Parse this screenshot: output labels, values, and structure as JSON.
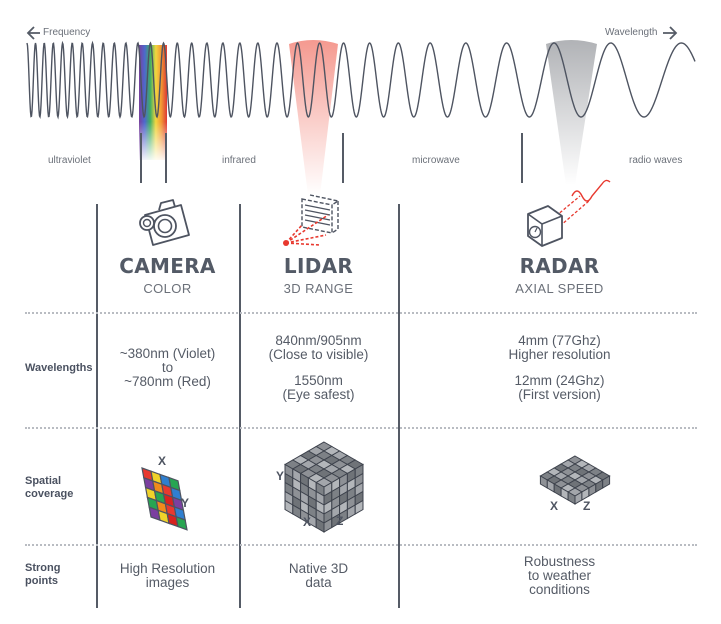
{
  "spectrum": {
    "left_arrow_label": "Frequency",
    "right_arrow_label": "Wavelength",
    "bands": [
      "ultraviolet",
      "infrared",
      "microwave",
      "radio waves"
    ]
  },
  "sensors": [
    {
      "name": "CAMERA",
      "measure": "COLOR",
      "icon": "camera-icon"
    },
    {
      "name": "LIDAR",
      "measure": "3D RANGE",
      "icon": "lidar-icon"
    },
    {
      "name": "RADAR",
      "measure": "AXIAL SPEED",
      "icon": "radar-icon"
    }
  ],
  "rows": {
    "wavelengths": {
      "label": "Wavelengths",
      "camera": [
        "~380nm (Violet)",
        "to",
        "~780nm (Red)"
      ],
      "lidar": [
        "840nm/905nm",
        "(Close to visible)",
        "1550nm",
        "(Eye safest)"
      ],
      "radar": [
        "4mm (77Ghz)",
        "Higher resolution",
        "12mm (24Ghz)",
        "(First version)"
      ]
    },
    "spatial": {
      "label_line1": "Spatial",
      "label_line2": "coverage",
      "camera_axes": [
        "X",
        "Y"
      ],
      "lidar_axes": [
        "Y",
        "X",
        "Z"
      ],
      "radar_axes": [
        "X",
        "Z"
      ]
    },
    "strong": {
      "label_line1": "Strong",
      "label_line2": "points",
      "camera": [
        "High Resolution",
        "images"
      ],
      "lidar": [
        "Native 3D",
        "data"
      ],
      "radar": [
        "Robustness",
        "to weather",
        "conditions"
      ]
    }
  },
  "colors": {
    "ink": "#555b66",
    "lidar_red": "#e8392f",
    "radar_grey": "#9a9da3"
  }
}
